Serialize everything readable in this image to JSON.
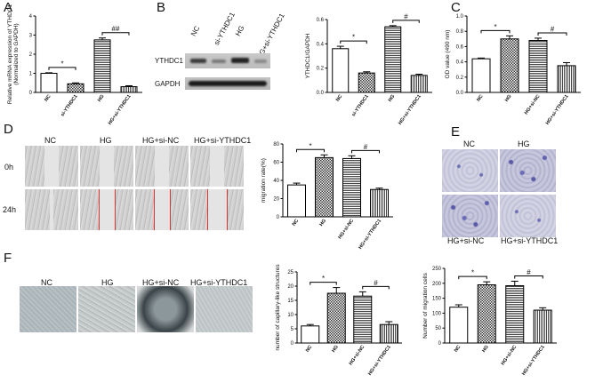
{
  "panels": {
    "A": "A",
    "B": "B",
    "C": "C",
    "D": "D",
    "E": "E",
    "F": "F"
  },
  "blot": {
    "lanes": [
      "NC",
      "si-YTHDC1",
      "HG",
      "HG+si-YTHDC1"
    ],
    "rows": [
      "YTHDC1",
      "GAPDH"
    ]
  },
  "wound": {
    "columns": [
      "NC",
      "HG",
      "HG+si-NC",
      "HG+si-YTHDC1"
    ],
    "rows": [
      "0h",
      "24h"
    ]
  },
  "transwell": {
    "labels": [
      "NC",
      "HG",
      "HG+si-NC",
      "HG+si-YTHDC1"
    ]
  },
  "tube": {
    "labels": [
      "NC",
      "HG",
      "HG+si-NC",
      "HG+si-YTHDC1"
    ]
  },
  "colors": {
    "bar_stroke": "#000000",
    "bar_fill": "#ffffff",
    "stripe": "#333333"
  },
  "chart_data": [
    {
      "id": "A",
      "type": "bar",
      "categories": [
        "NC",
        "si-YTHDC1",
        "HG",
        "HG+si-YTHDC1"
      ],
      "values": [
        1.0,
        0.45,
        2.75,
        0.3
      ],
      "errors": [
        0.03,
        0.05,
        0.1,
        0.05
      ],
      "patterns": [
        "white",
        "checker",
        "hlines",
        "vlines"
      ],
      "ylabel": "Relative mRNA expression of YTHDC1\n(Normalized to GAPDH)",
      "ylim": [
        0,
        4
      ],
      "yticks": [
        0,
        1,
        2,
        3,
        4
      ],
      "sig": [
        {
          "from": 0,
          "to": 1,
          "label": "*"
        },
        {
          "from": 2,
          "to": 3,
          "label": "##"
        }
      ]
    },
    {
      "id": "B",
      "type": "bar",
      "categories": [
        "NC",
        "si-YTHDC1",
        "HG",
        "HG+si-YTHDC1"
      ],
      "values": [
        0.36,
        0.16,
        0.54,
        0.14
      ],
      "errors": [
        0.02,
        0.01,
        0.01,
        0.01
      ],
      "patterns": [
        "white",
        "checker",
        "hlines",
        "vlines"
      ],
      "ylabel": "YTHDC1/GAPDH",
      "ylim": [
        0,
        0.6
      ],
      "yticks": [
        0.0,
        0.2,
        0.4,
        0.6
      ],
      "sig": [
        {
          "from": 0,
          "to": 1,
          "label": "*"
        },
        {
          "from": 2,
          "to": 3,
          "label": "#"
        }
      ]
    },
    {
      "id": "C",
      "type": "bar",
      "categories": [
        "NC",
        "HG",
        "HG+si-NC",
        "HG+si-YTHDC1"
      ],
      "values": [
        0.44,
        0.7,
        0.68,
        0.35
      ],
      "errors": [
        0.01,
        0.04,
        0.03,
        0.04
      ],
      "patterns": [
        "white",
        "checker",
        "hlines",
        "vlines"
      ],
      "ylabel": "OD value (490 nm)",
      "ylim": [
        0,
        1.0
      ],
      "yticks": [
        0.0,
        0.2,
        0.4,
        0.6,
        0.8,
        1.0
      ],
      "sig": [
        {
          "from": 0,
          "to": 1,
          "label": "*"
        },
        {
          "from": 2,
          "to": 3,
          "label": "#"
        }
      ]
    },
    {
      "id": "D",
      "type": "bar",
      "categories": [
        "NC",
        "HG",
        "HG+si-NC",
        "HG+si-YTHDC1"
      ],
      "values": [
        35,
        65,
        64,
        30
      ],
      "errors": [
        2,
        3,
        3,
        1.5
      ],
      "patterns": [
        "white",
        "checker",
        "hlines",
        "vlines"
      ],
      "ylabel": "migration rate(%)",
      "ylim": [
        0,
        80
      ],
      "yticks": [
        0,
        20,
        40,
        60,
        80
      ],
      "sig": [
        {
          "from": 0,
          "to": 1,
          "label": "*"
        },
        {
          "from": 2,
          "to": 3,
          "label": "#"
        }
      ]
    },
    {
      "id": "F1",
      "type": "bar",
      "categories": [
        "NC",
        "HG",
        "HG+si-NC",
        "HG+si-YTHDC1"
      ],
      "values": [
        6,
        17.5,
        16.5,
        6.5
      ],
      "errors": [
        0.5,
        2,
        1.5,
        1
      ],
      "patterns": [
        "white",
        "checker",
        "hlines",
        "vlines"
      ],
      "ylabel": "number of capillary-like structures",
      "ylim": [
        0,
        25
      ],
      "yticks": [
        0,
        5,
        10,
        15,
        20,
        25
      ],
      "sig": [
        {
          "from": 0,
          "to": 1,
          "label": "*"
        },
        {
          "from": 2,
          "to": 3,
          "label": "#"
        }
      ]
    },
    {
      "id": "F2",
      "type": "bar",
      "categories": [
        "NC",
        "HG",
        "HG+si-NC",
        "HG+si-YTHDC1"
      ],
      "values": [
        120,
        195,
        192,
        110
      ],
      "errors": [
        8,
        10,
        15,
        8
      ],
      "patterns": [
        "white",
        "checker",
        "hlines",
        "vlines"
      ],
      "ylabel": "Number of migration cells",
      "ylim": [
        0,
        250
      ],
      "yticks": [
        0,
        50,
        100,
        150,
        200,
        250
      ],
      "sig": [
        {
          "from": 0,
          "to": 1,
          "label": "*"
        },
        {
          "from": 2,
          "to": 3,
          "label": "#"
        }
      ]
    }
  ]
}
